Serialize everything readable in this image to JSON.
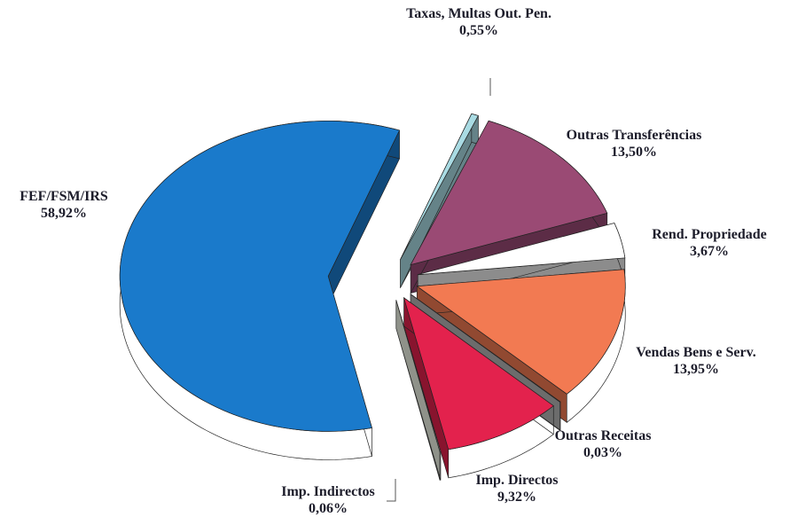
{
  "chart_data": {
    "type": "pie",
    "categories": [
      "Taxas, Multas Out. Pen.",
      "Outras Transferências",
      "Rend. Propriedade",
      "Vendas Bens e Serv.",
      "Outras Receitas",
      "Imp. Directos",
      "Imp. Indirectos",
      "FEF/FSM/IRS"
    ],
    "values": [
      0.55,
      13.5,
      3.67,
      13.95,
      0.03,
      9.32,
      0.06,
      58.92
    ],
    "value_labels": [
      "0,55%",
      "13,50%",
      "3,67%",
      "13,95%",
      "0,03%",
      "9,32%",
      "0,06%",
      "58,92%"
    ],
    "colors": [
      "#a9dbe3",
      "#9a4a74",
      "#ffffff",
      "#f27a52",
      "#b4b4b4",
      "#e3224d",
      "#eef3e6",
      "#1a7acb"
    ]
  }
}
